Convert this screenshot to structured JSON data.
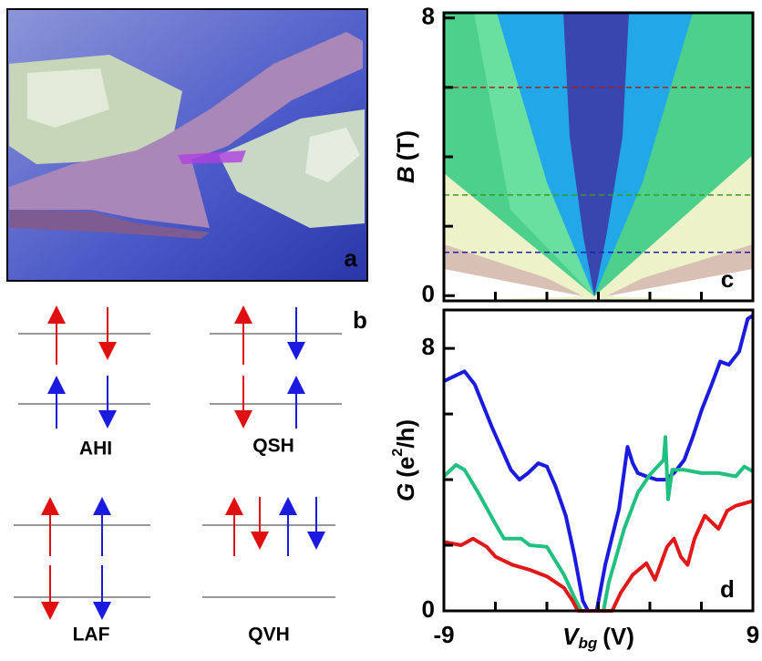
{
  "figure": {
    "panel_a": {
      "label": "a"
    },
    "panel_b": {
      "label": "b",
      "states": [
        "AHI",
        "QSH",
        "LAF",
        "QVH"
      ]
    }
  },
  "chart_data": [
    {
      "type": "colormap",
      "panel_label": "c",
      "ylabel": [
        "B",
        "(T)"
      ],
      "xlim": [
        -9,
        9
      ],
      "xminorticks": [
        -6,
        -3,
        0,
        3,
        6
      ],
      "ylim": [
        -0.15,
        8.15
      ],
      "yticks": [
        0,
        8
      ],
      "yminorticks": [
        2,
        4,
        6
      ],
      "hlines": [
        {
          "value": 6,
          "color": "#a52020"
        },
        {
          "value": 2.9,
          "color": "#3a9a20"
        },
        {
          "value": 1.25,
          "color": "#2020b0"
        }
      ]
    },
    {
      "type": "line",
      "panel_label": "d",
      "xlabel": [
        "V",
        "bg",
        "(V)"
      ],
      "ylabel": [
        "G",
        "(e",
        "2",
        "/h)"
      ],
      "xlim": [
        -9,
        9
      ],
      "xticks": [
        -9,
        9
      ],
      "xminorticks": [
        -6,
        -3,
        0,
        3,
        6
      ],
      "ylim": [
        0,
        9.17
      ],
      "yticks": [
        0,
        8
      ],
      "yminorticks": [
        2,
        4,
        6
      ],
      "series": [
        {
          "color": "#1a1ae0",
          "x": [
            -9,
            -7.8,
            -7.2,
            -6.2,
            -5.1,
            -4.6,
            -4.1,
            -3.5,
            -3,
            -2.5,
            -1.9,
            -1.4,
            -0.9,
            -0.6,
            -0.1,
            0.4,
            1.2,
            1.7,
            2,
            2.3,
            2.8,
            3.4,
            3.9,
            4.4,
            5,
            5.5,
            6,
            6.6,
            7.1,
            7.6,
            8.2,
            8.7,
            9
          ],
          "values": [
            7.0,
            7.3,
            6.9,
            5.6,
            4.3,
            4.0,
            4.2,
            4.5,
            4.4,
            3.8,
            2.9,
            1.7,
            0.3,
            0,
            0,
            1.4,
            3.1,
            5.0,
            4.5,
            4.2,
            4.1,
            4.0,
            4.0,
            4.2,
            4.6,
            5.3,
            6.1,
            6.9,
            7.6,
            7.5,
            7.9,
            8.9,
            9.0
          ]
        },
        {
          "color": "#22c080",
          "x": [
            -9,
            -8.3,
            -7.8,
            -7,
            -6,
            -5.5,
            -4.5,
            -4,
            -3,
            -2,
            -1.3,
            -1,
            0.3,
            0.6,
            1.5,
            2.3,
            3,
            3.8,
            3.9,
            4.06,
            4.3,
            5,
            6,
            7,
            8,
            8.5,
            9
          ],
          "values": [
            4.1,
            4.45,
            4.3,
            3.6,
            2.65,
            2.2,
            2.2,
            2.0,
            1.95,
            1.1,
            0.3,
            0,
            0,
            0.85,
            2.5,
            3.6,
            4.15,
            4.6,
            5.3,
            3.4,
            4.3,
            4.3,
            4.2,
            4.2,
            4.1,
            4.4,
            4.25
          ]
        },
        {
          "color": "#e01818",
          "x": [
            -9,
            -8,
            -7.3,
            -6.5,
            -6,
            -5,
            -4,
            -3,
            -2,
            -1.5,
            -1.2,
            0.8,
            1.3,
            2,
            2.8,
            3.3,
            4,
            4.4,
            4.8,
            5.2,
            5.6,
            6.2,
            7,
            7.5,
            8,
            9
          ],
          "values": [
            2.1,
            2.0,
            2.2,
            1.95,
            1.65,
            1.4,
            1.25,
            1.05,
            0.7,
            0.3,
            0,
            0,
            0.55,
            1.1,
            1.45,
            0.95,
            1.95,
            2.2,
            1.65,
            1.4,
            2.2,
            2.9,
            2.5,
            3.05,
            3.2,
            3.35
          ]
        }
      ]
    }
  ]
}
